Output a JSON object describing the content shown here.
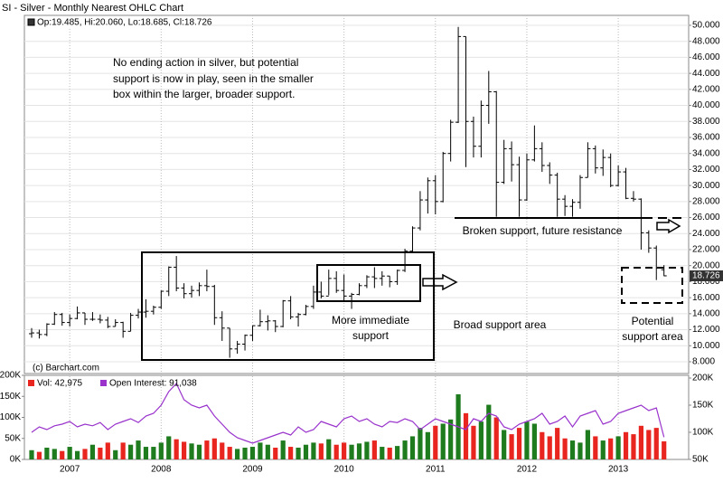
{
  "chart_data": [
    {
      "type": "ohlc",
      "title": "SI - Silver - Monthly Nearest OHLC Chart",
      "legend": "Op:19.485, Hi:20.060, Lo:18.685, Cl:18.726",
      "credit": "(c) Barchart.com",
      "last_label": "18.726",
      "color": "#000000",
      "grid": true,
      "categories": [
        null,
        null,
        null,
        null,
        null,
        "2007",
        null,
        null,
        null,
        null,
        null,
        null,
        null,
        null,
        null,
        null,
        null,
        "2008",
        null,
        null,
        null,
        null,
        null,
        null,
        null,
        null,
        null,
        null,
        null,
        "2009",
        null,
        null,
        null,
        null,
        null,
        null,
        null,
        null,
        null,
        null,
        null,
        "2010",
        null,
        null,
        null,
        null,
        null,
        null,
        null,
        null,
        null,
        null,
        null,
        "2011",
        null,
        null,
        null,
        null,
        null,
        null,
        null,
        null,
        null,
        null,
        null,
        "2012",
        null,
        null,
        null,
        null,
        null,
        null,
        null,
        null,
        null,
        null,
        null,
        "2013",
        null,
        null,
        null,
        null,
        null,
        null
      ],
      "open": [
        11.5,
        11.6,
        11.4,
        12.7,
        13.9,
        12.9,
        13.4,
        14.1,
        13.3,
        13.3,
        13.2,
        12.4,
        12.9,
        11.8,
        13.8,
        14.2,
        14.3,
        14.8,
        16.8,
        19.8,
        17.2,
        16.5,
        16.9,
        17.5,
        17.4,
        13.5,
        12.2,
        9.6,
        10.2,
        11.3,
        12.5,
        13.0,
        13.1,
        12.4,
        15.6,
        13.6,
        13.9,
        14.9,
        16.7,
        16.2,
        18.4,
        16.9,
        16.2,
        16.4,
        17.5,
        18.6,
        18.4,
        18.7,
        18.0,
        19.4,
        21.8,
        24.7,
        28.2,
        30.6,
        28.0,
        34.0,
        37.9,
        48.6,
        38.0,
        34.9,
        40.0,
        41.7,
        30.4,
        34.6,
        32.6,
        28.2,
        33.2,
        34.6,
        32.5,
        31.3,
        28.3,
        27.4,
        27.9,
        31.0,
        34.6,
        32.2,
        33.5,
        30.0,
        31.7,
        28.4,
        28.3,
        24.1,
        22.2,
        19.485
      ],
      "high": [
        12.2,
        12.0,
        12.8,
        14.2,
        14.1,
        13.9,
        14.9,
        14.1,
        14.2,
        13.9,
        13.6,
        13.3,
        13.0,
        14.1,
        14.6,
        15.8,
        15.0,
        16.9,
        19.9,
        21.2,
        17.8,
        17.5,
        17.9,
        19.5,
        17.6,
        14.3,
        12.2,
        10.6,
        11.4,
        12.5,
        14.5,
        13.8,
        13.2,
        15.7,
        16.2,
        14.1,
        15.1,
        17.5,
        18.0,
        19.5,
        19.3,
        18.9,
        16.6,
        17.8,
        18.8,
        19.8,
        19.3,
        18.7,
        19.5,
        22.1,
        24.9,
        29.3,
        31.0,
        31.3,
        34.2,
        38.2,
        49.8,
        48.6,
        38.6,
        40.6,
        44.3,
        41.8,
        35.7,
        35.5,
        33.6,
        34.0,
        37.5,
        35.4,
        32.9,
        31.6,
        28.8,
        28.3,
        31.3,
        35.4,
        35.0,
        34.5,
        34.0,
        32.5,
        32.2,
        29.3,
        28.4,
        24.4,
        22.5,
        20.06
      ],
      "low": [
        11.0,
        10.9,
        11.2,
        12.6,
        12.5,
        12.4,
        13.3,
        12.6,
        13.1,
        12.8,
        12.2,
        12.4,
        11.0,
        11.8,
        13.4,
        13.5,
        13.9,
        14.6,
        16.2,
        16.8,
        15.9,
        16.0,
        16.2,
        16.8,
        12.6,
        10.6,
        8.5,
        9.0,
        9.4,
        10.6,
        12.4,
        11.9,
        11.7,
        12.3,
        13.3,
        12.4,
        13.8,
        14.6,
        15.9,
        16.3,
        16.6,
        15.5,
        14.6,
        16.3,
        17.2,
        17.2,
        17.5,
        17.3,
        17.6,
        19.2,
        21.6,
        24.4,
        26.5,
        26.4,
        27.9,
        33.0,
        37.8,
        32.3,
        33.5,
        33.5,
        37.7,
        26.1,
        30.2,
        30.5,
        26.1,
        28.1,
        33.0,
        31.7,
        30.2,
        26.1,
        26.2,
        26.1,
        27.1,
        31.0,
        31.5,
        31.2,
        29.8,
        29.9,
        28.3,
        28.0,
        22.0,
        21.6,
        18.2,
        18.685
      ],
      "close": [
        11.6,
        11.4,
        12.7,
        13.9,
        12.9,
        13.4,
        14.1,
        13.3,
        13.3,
        13.2,
        12.4,
        12.9,
        11.8,
        13.8,
        14.2,
        14.3,
        14.8,
        16.8,
        19.8,
        17.2,
        16.5,
        16.9,
        17.5,
        17.4,
        13.5,
        12.2,
        9.6,
        10.2,
        11.3,
        12.5,
        13.0,
        13.1,
        12.4,
        15.6,
        13.6,
        13.9,
        14.9,
        16.7,
        16.2,
        18.4,
        16.9,
        16.2,
        16.4,
        17.5,
        18.6,
        18.4,
        18.7,
        18.0,
        19.4,
        21.8,
        24.7,
        28.2,
        30.6,
        28.0,
        34.0,
        37.9,
        48.6,
        38.0,
        34.9,
        40.0,
        41.7,
        30.4,
        34.6,
        32.6,
        28.2,
        33.2,
        34.6,
        32.5,
        31.3,
        28.3,
        27.4,
        27.9,
        31.0,
        34.6,
        32.2,
        33.5,
        30.0,
        31.7,
        28.4,
        28.3,
        24.1,
        22.2,
        19.7,
        18.726
      ],
      "ylim": [
        6.53,
        51.24
      ],
      "yticks": [
        {
          "value": 8,
          "label": "8.000"
        },
        {
          "value": 10,
          "label": "10.000"
        },
        {
          "value": 12,
          "label": "12.000"
        },
        {
          "value": 14,
          "label": "14.000"
        },
        {
          "value": 16,
          "label": "16.000"
        },
        {
          "value": 18,
          "label": "18.000"
        },
        {
          "value": 20,
          "label": "20.000"
        },
        {
          "value": 22,
          "label": "22.000"
        },
        {
          "value": 24,
          "label": "24.000"
        },
        {
          "value": 26,
          "label": "26.000"
        },
        {
          "value": 28,
          "label": "28.000"
        },
        {
          "value": 30,
          "label": "30.000"
        },
        {
          "value": 32,
          "label": "32.000"
        },
        {
          "value": 34,
          "label": "34.000"
        },
        {
          "value": 36,
          "label": "36.000"
        },
        {
          "value": 38,
          "label": "38.000"
        },
        {
          "value": 40,
          "label": "40.000"
        },
        {
          "value": 42,
          "label": "42.000"
        },
        {
          "value": 44,
          "label": "44.000"
        },
        {
          "value": 46,
          "label": "46.000"
        },
        {
          "value": 48,
          "label": "48.000"
        },
        {
          "value": 50,
          "label": "50.000"
        }
      ],
      "annotations": {
        "note": [
          "No ending action in silver, but potential",
          "support is now in play, seen in the smaller",
          "box within the larger, broader support."
        ],
        "immediate": [
          "More immediate",
          "support"
        ],
        "broad": "Broad support area",
        "broken": "Broken support, future resistance",
        "potential": [
          "Potential",
          "support area"
        ]
      }
    },
    {
      "type": "bar",
      "series": [
        {
          "name": "Vol: 42,975",
          "up_color": "#1e7b1e",
          "down_color": "#e8251f",
          "values": [
            22000,
            18000,
            28000,
            25000,
            20000,
            30000,
            20000,
            25000,
            35000,
            28000,
            40000,
            22000,
            40000,
            35000,
            45000,
            30000,
            30000,
            40000,
            55000,
            48000,
            42000,
            38000,
            35000,
            45000,
            50000,
            40000,
            30000,
            25000,
            28000,
            30000,
            40000,
            35000,
            28000,
            45000,
            30000,
            28000,
            35000,
            40000,
            38000,
            48000,
            35000,
            40000,
            35000,
            38000,
            42000,
            45000,
            30000,
            28000,
            32000,
            45000,
            55000,
            75000,
            65000,
            80000,
            85000,
            95000,
            155000,
            110000,
            80000,
            90000,
            130000,
            100000,
            70000,
            60000,
            75000,
            90000,
            85000,
            65000,
            55000,
            75000,
            50000,
            45000,
            40000,
            70000,
            55000,
            45000,
            50000,
            55000,
            65000,
            60000,
            80000,
            70000,
            75000,
            42975
          ]
        },
        {
          "name": "Open Interest: 91,038",
          "type": "line",
          "axis": "y2",
          "color": "#9933cc",
          "values": [
            100000,
            110000,
            105000,
            112000,
            115000,
            120000,
            110000,
            115000,
            112000,
            118000,
            105000,
            115000,
            120000,
            125000,
            118000,
            130000,
            135000,
            150000,
            175000,
            190000,
            160000,
            150000,
            145000,
            150000,
            130000,
            115000,
            100000,
            90000,
            85000,
            80000,
            85000,
            90000,
            95000,
            100000,
            95000,
            110000,
            100000,
            105000,
            120000,
            115000,
            110000,
            125000,
            130000,
            120000,
            125000,
            115000,
            110000,
            120000,
            118000,
            125000,
            120000,
            105000,
            115000,
            125000,
            120000,
            115000,
            110000,
            105000,
            125000,
            120000,
            135000,
            130000,
            110000,
            105000,
            115000,
            120000,
            125000,
            135000,
            115000,
            120000,
            130000,
            110000,
            130000,
            135000,
            140000,
            115000,
            120000,
            135000,
            140000,
            145000,
            150000,
            140000,
            145000,
            91038
          ]
        }
      ],
      "ylim": [
        0,
        200000
      ],
      "yticks": [
        {
          "value": 0,
          "label": "0K"
        },
        {
          "value": 50000,
          "label": "50K"
        },
        {
          "value": 100000,
          "label": "100K"
        },
        {
          "value": 150000,
          "label": "150K"
        },
        {
          "value": 200000,
          "label": "200K"
        }
      ],
      "y2lim": [
        50000,
        205000
      ],
      "y2ticks": [
        {
          "value": 50000,
          "label": "50K"
        },
        {
          "value": 100000,
          "label": "100K"
        },
        {
          "value": 150000,
          "label": "150K"
        },
        {
          "value": 200000,
          "label": "200K"
        }
      ]
    }
  ]
}
